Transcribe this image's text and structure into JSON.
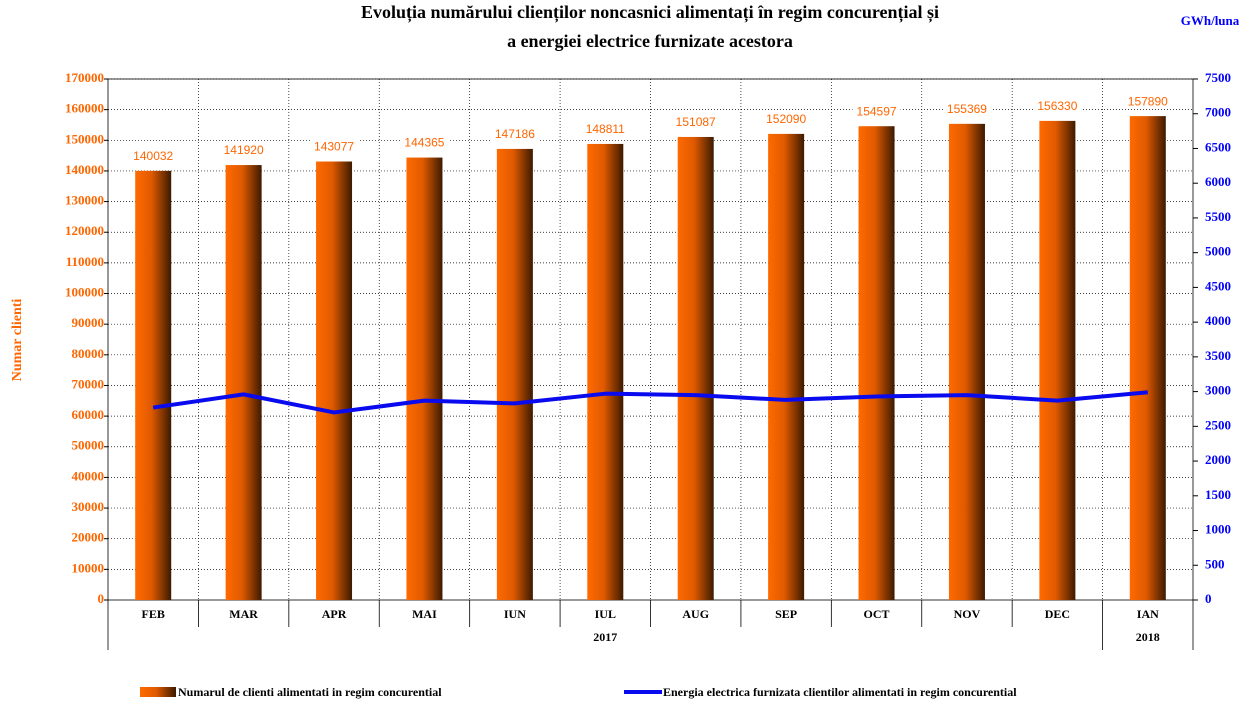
{
  "chart_data": {
    "type": "bar_line",
    "title_lines": [
      "Evoluția numărului clienților noncasnici alimentați în regim concurențial și",
      "a energiei electrice furnizate acestora"
    ],
    "y_label": "Numar clienti",
    "y2_label": "GWh/luna",
    "categories": [
      "FEB",
      "MAR",
      "APR",
      "MAI",
      "IUN",
      "IUL",
      "AUG",
      "SEP",
      "OCT",
      "NOV",
      "DEC",
      "IAN"
    ],
    "year_groups": [
      {
        "label": "2017",
        "categories": 11
      },
      {
        "label": "2018",
        "categories": 1
      }
    ],
    "series": [
      {
        "name": "Numarul de clienti alimentati in regim concurential",
        "type": "bar",
        "color": "#ff6600",
        "values": [
          140032,
          141920,
          143077,
          144365,
          147186,
          148811,
          151087,
          152090,
          154597,
          155369,
          156330,
          157890
        ]
      },
      {
        "name": "Energia electrica furnizata clientilor alimentati in regim concurential",
        "type": "line",
        "axis": "y2",
        "color": "#0a0aee",
        "values": [
          2770,
          2960,
          2700,
          2870,
          2830,
          2970,
          2950,
          2880,
          2930,
          2950,
          2870,
          2990
        ]
      }
    ],
    "ylim": [
      0,
      170000
    ],
    "yticks": [
      0,
      10000,
      20000,
      30000,
      40000,
      50000,
      60000,
      70000,
      80000,
      90000,
      100000,
      110000,
      120000,
      130000,
      140000,
      150000,
      160000,
      170000
    ],
    "y2lim": [
      0,
      7500
    ],
    "y2ticks": [
      0,
      500,
      1000,
      1500,
      2000,
      2500,
      3000,
      3500,
      4000,
      4500,
      5000,
      5500,
      6000,
      6500,
      7000,
      7500
    ],
    "grid": true
  }
}
